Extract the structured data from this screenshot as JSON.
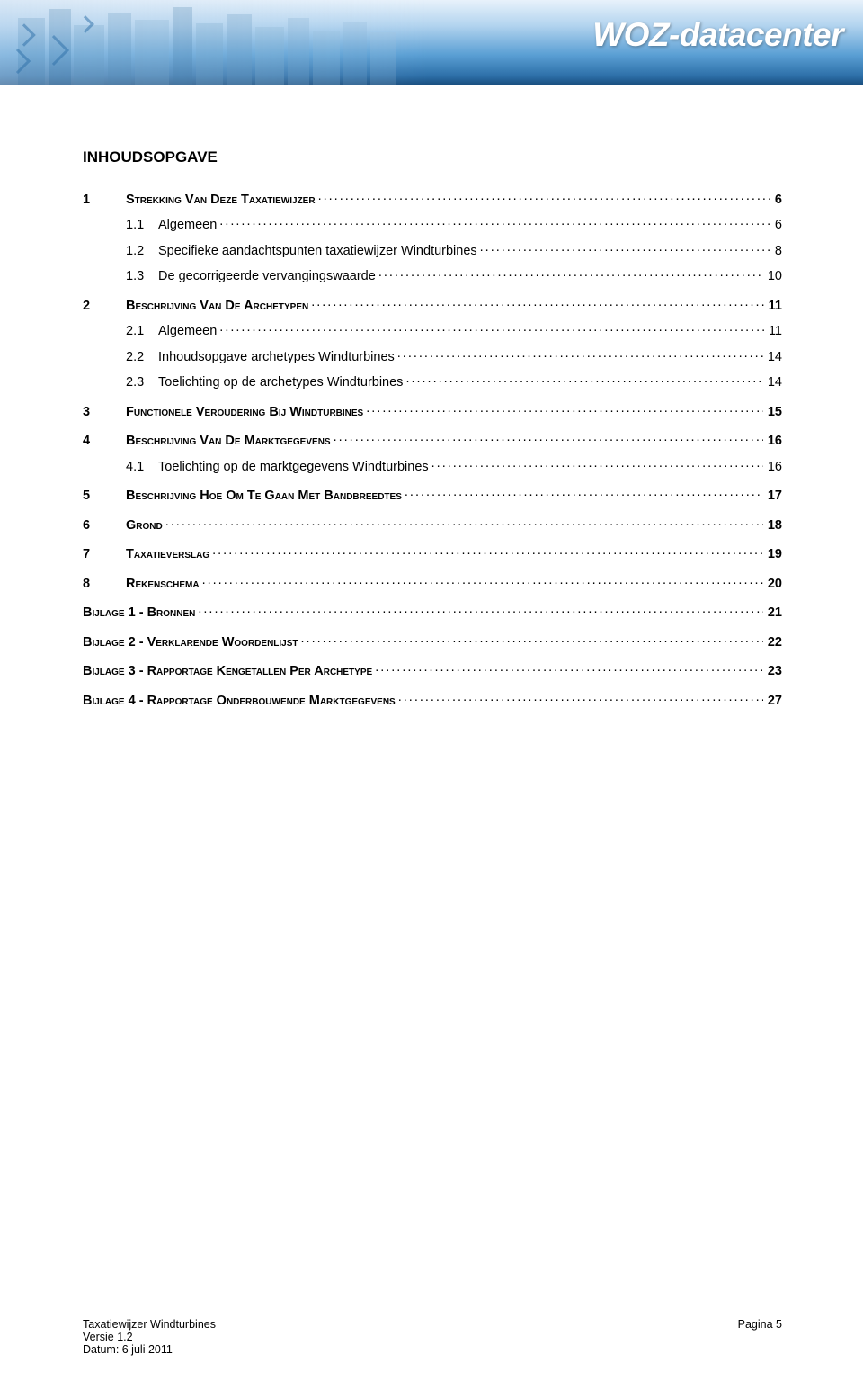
{
  "banner": {
    "title": "WOZ-datacenter",
    "bg_gradient": [
      "#e8f2fb",
      "#b3d4ef",
      "#5a9fd4",
      "#2d6fa8",
      "#1a4f80"
    ],
    "title_color": "#ffffff"
  },
  "heading": "INHOUDSOPGAVE",
  "toc": [
    {
      "num": "1",
      "label": "STREKKING VAN DEZE TAXATIEWIJZER",
      "page": "6",
      "level": 1,
      "children": [
        {
          "num": "1.1",
          "label": "Algemeen",
          "page": "6",
          "level": 2
        },
        {
          "num": "1.2",
          "label": "Specifieke aandachtspunten taxatiewijzer Windturbines",
          "page": "8",
          "level": 2
        },
        {
          "num": "1.3",
          "label": "De gecorrigeerde vervangingswaarde",
          "page": "10",
          "level": 2
        }
      ]
    },
    {
      "num": "2",
      "label": "BESCHRIJVING VAN DE ARCHETYPEN",
      "page": "11",
      "level": 1,
      "children": [
        {
          "num": "2.1",
          "label": "Algemeen",
          "page": "11",
          "level": 2
        },
        {
          "num": "2.2",
          "label": "Inhoudsopgave archetypes Windturbines",
          "page": "14",
          "level": 2
        },
        {
          "num": "2.3",
          "label": "Toelichting op de archetypes Windturbines",
          "page": "14",
          "level": 2
        }
      ]
    },
    {
      "num": "3",
      "label": "FUNCTIONELE VEROUDERING BIJ WINDTURBINES",
      "page": "15",
      "level": 1
    },
    {
      "num": "4",
      "label": "BESCHRIJVING VAN DE MARKTGEGEVENS",
      "page": "16",
      "level": 1,
      "children": [
        {
          "num": "4.1",
          "label": "Toelichting op de marktgegevens Windturbines",
          "page": "16",
          "level": 2
        }
      ]
    },
    {
      "num": "5",
      "label": "BESCHRIJVING HOE OM TE GAAN MET BANDBREEDTES",
      "page": "17",
      "level": 1
    },
    {
      "num": "6",
      "label": "GROND",
      "page": "18",
      "level": 1
    },
    {
      "num": "7",
      "label": "TAXATIEVERSLAG",
      "page": "19",
      "level": 1
    },
    {
      "num": "8",
      "label": "REKENSCHEMA",
      "page": "20",
      "level": 1
    },
    {
      "num": "",
      "label": "BIJLAGE 1 - BRONNEN",
      "page": "21",
      "level": 1,
      "nolabelnum": true
    },
    {
      "num": "",
      "label": "BIJLAGE 2 - VERKLARENDE WOORDENLIJST",
      "page": "22",
      "level": 1,
      "nolabelnum": true
    },
    {
      "num": "",
      "label": "BIJLAGE 3 - RAPPORTAGE KENGETALLEN PER ARCHETYPE",
      "page": "23",
      "level": 1,
      "nolabelnum": true
    },
    {
      "num": "",
      "label": "BIJLAGE 4 - RAPPORTAGE ONDERBOUWENDE MARKTGEGEVENS",
      "page": "27",
      "level": 1,
      "nolabelnum": true
    }
  ],
  "footer": {
    "left1": "Taxatiewijzer Windturbines",
    "left2": "Versie 1.2",
    "left3": "Datum: 6 juli 2011",
    "right": "Pagina 5"
  },
  "colors": {
    "text": "#000000",
    "background": "#ffffff"
  },
  "typography": {
    "body_font": "Arial",
    "body_size_pt": 11,
    "heading_size_pt": 13,
    "footer_size_pt": 9.5
  }
}
